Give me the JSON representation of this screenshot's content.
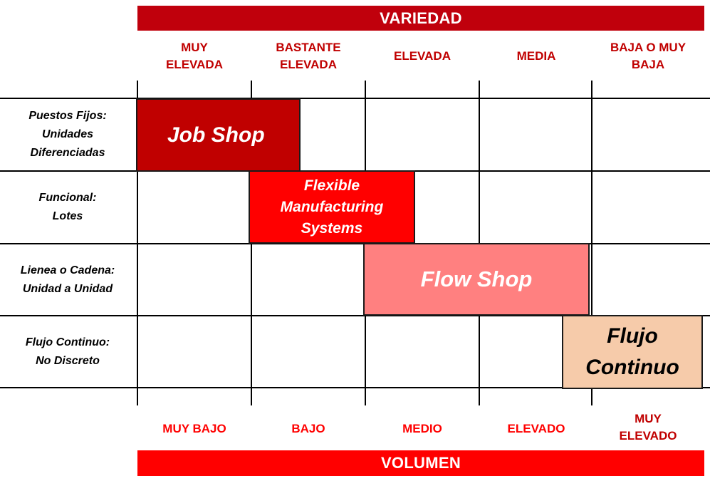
{
  "top_banner": "VARIEDAD",
  "bottom_banner": "VOLUMEN",
  "variety_levels": [
    [
      "MUY",
      "ELEVADA"
    ],
    [
      "BASTANTE",
      "ELEVADA"
    ],
    [
      "ELEVADA"
    ],
    [
      "MEDIA"
    ],
    [
      "BAJA O MUY",
      "BAJA"
    ]
  ],
  "volume_levels": [
    [
      "MUY BAJO"
    ],
    [
      "BAJO"
    ],
    [
      "MEDIO"
    ],
    [
      "ELEVADO"
    ],
    [
      "MUY",
      "ELEVADO"
    ]
  ],
  "process_types": [
    [
      "Puestos Fijos:",
      "Unidades",
      "Diferenciadas"
    ],
    [
      "Funcional:",
      "Lotes"
    ],
    [
      "Lienea o Cadena:",
      "Unidad a Unidad"
    ],
    [
      "Flujo Continuo:",
      "No Discreto"
    ]
  ],
  "boxes": {
    "job_shop": "Job Shop",
    "fms": [
      "Flexible",
      "Manufacturing",
      "Systems"
    ],
    "flow_shop": "Flow Shop",
    "flujo_continuo": [
      "Flujo",
      "Continuo"
    ]
  },
  "colors": {
    "dark_red": "#c00000",
    "red": "#ff0000",
    "light_red": "#ff8080",
    "peach": "#f6cbaa"
  }
}
